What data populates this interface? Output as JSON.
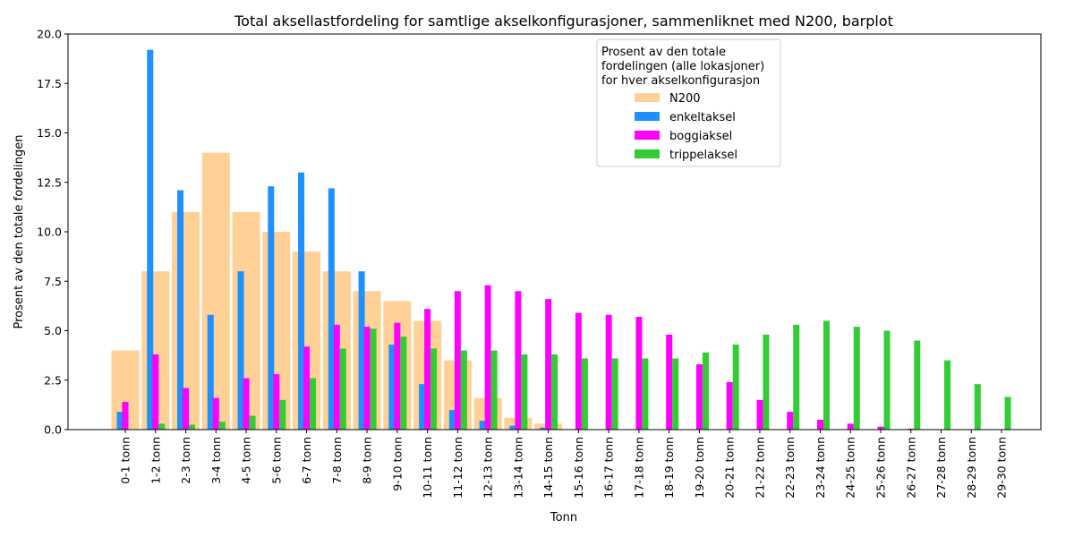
{
  "chart_data": {
    "type": "bar",
    "title": "Total aksellastfordeling for samtlige akselkonfigurasjoner, sammenliknet med N200, barplot",
    "xlabel": "Tonn",
    "ylabel": "Prosent av den totale fordelingen",
    "ylim": [
      0,
      20
    ],
    "yticks": [
      "0.0",
      "2.5",
      "5.0",
      "7.5",
      "10.0",
      "12.5",
      "15.0",
      "17.5",
      "20.0"
    ],
    "categories": [
      "0-1 tonn",
      "1-2 tonn",
      "2-3 tonn",
      "3-4 tonn",
      "4-5 tonn",
      "5-6 tonn",
      "6-7 tonn",
      "7-8 tonn",
      "8-9 tonn",
      "9-10 tonn",
      "10-11 tonn",
      "11-12 tonn",
      "12-13 tonn",
      "13-14 tonn",
      "14-15 tonn",
      "15-16 tonn",
      "16-17 tonn",
      "17-18 tonn",
      "18-19 tonn",
      "19-20 tonn",
      "20-21 tonn",
      "21-22 tonn",
      "22-23 tonn",
      "23-24 tonn",
      "24-25 tonn",
      "25-26 tonn",
      "26-27 tonn",
      "27-28 tonn",
      "28-29 tonn",
      "29-30 tonn"
    ],
    "legend": {
      "title": "Prosent av den totale\nfordelingen (alle lokasjoner)\nfor hver akselkonfigurasjon",
      "placement": "top-right"
    },
    "series": [
      {
        "name": "N200",
        "color": "#ffd196",
        "values": [
          4.0,
          8.0,
          11.0,
          14.0,
          11.0,
          10.0,
          9.0,
          8.0,
          7.0,
          6.5,
          5.5,
          3.5,
          1.6,
          0.6,
          0.3,
          0,
          0,
          0,
          0,
          0,
          0,
          0,
          0,
          0,
          0,
          0,
          0,
          0,
          0,
          0
        ]
      },
      {
        "name": "enkeltaksel",
        "color": "#1e90ff",
        "values": [
          0.9,
          19.2,
          12.1,
          5.8,
          8.0,
          12.3,
          13.0,
          12.2,
          8.0,
          4.3,
          2.3,
          1.0,
          0.45,
          0.2,
          0.1,
          0,
          0,
          0,
          0,
          0,
          0,
          0,
          0,
          0,
          0,
          0,
          0,
          0,
          0,
          0
        ]
      },
      {
        "name": "boggiaksel",
        "color": "#ff00ff",
        "values": [
          1.4,
          3.8,
          2.1,
          1.6,
          2.6,
          2.8,
          4.2,
          5.3,
          5.2,
          5.4,
          6.1,
          7.0,
          7.3,
          7.0,
          6.6,
          5.9,
          5.8,
          5.7,
          4.8,
          3.3,
          2.4,
          1.5,
          0.9,
          0.5,
          0.3,
          0.15,
          0.05,
          0,
          0,
          0
        ]
      },
      {
        "name": "trippelaksel",
        "color": "#32cd32",
        "values": [
          0,
          0.3,
          0.25,
          0.4,
          0.7,
          1.5,
          2.6,
          4.1,
          5.1,
          4.7,
          4.1,
          4.0,
          4.0,
          3.8,
          3.8,
          3.6,
          3.6,
          3.6,
          3.6,
          3.9,
          4.3,
          4.8,
          5.3,
          5.5,
          5.2,
          5.0,
          4.5,
          3.5,
          2.3,
          1.65
        ]
      }
    ]
  }
}
